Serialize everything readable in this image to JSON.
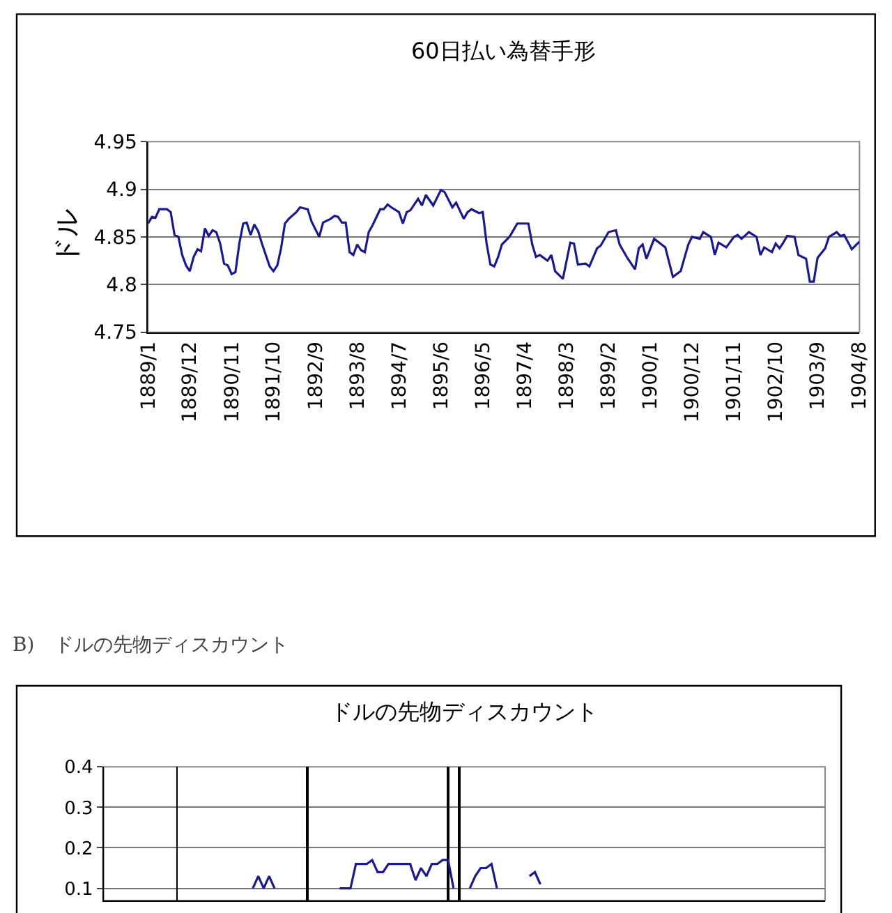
{
  "chart_data": [
    {
      "type": "line",
      "title": "60日払い為替手形",
      "ylabel": "ドル",
      "x": [
        "1889-01",
        "1889-02",
        "1889-03",
        "1889-04",
        "1889-06",
        "1889-07",
        "1889-08",
        "1889-09",
        "1889-10",
        "1889-11",
        "1889-12",
        "1890-01",
        "1890-02",
        "1890-03",
        "1890-04",
        "1890-05",
        "1890-06",
        "1890-07",
        "1890-08",
        "1890-09",
        "1890-10",
        "1890-11",
        "1890-12",
        "1891-01",
        "1891-02",
        "1891-03",
        "1891-04",
        "1891-05",
        "1891-06",
        "1891-07",
        "1891-09",
        "1891-10",
        "1891-11",
        "1891-12",
        "1892-01",
        "1892-02",
        "1892-04",
        "1892-05",
        "1892-07",
        "1892-08",
        "1892-10",
        "1892-11",
        "1893-01",
        "1893-02",
        "1893-03",
        "1893-04",
        "1893-05",
        "1893-06",
        "1893-07",
        "1893-08",
        "1893-09",
        "1893-10",
        "1893-11",
        "1893-12",
        "1894-02",
        "1894-03",
        "1894-04",
        "1894-05",
        "1894-07",
        "1894-08",
        "1894-09",
        "1894-10",
        "1894-12",
        "1895-01",
        "1895-02",
        "1895-04",
        "1895-06",
        "1895-07",
        "1895-09",
        "1895-10",
        "1895-12",
        "1896-01",
        "1896-02",
        "1896-04",
        "1896-05",
        "1896-06",
        "1896-07",
        "1896-08",
        "1896-09",
        "1896-10",
        "1896-12",
        "1897-01",
        "1897-02",
        "1897-05",
        "1897-06",
        "1897-07",
        "1897-08",
        "1897-10",
        "1897-11",
        "1897-12",
        "1898-02",
        "1898-04",
        "1898-05",
        "1898-06",
        "1898-08",
        "1898-09",
        "1898-11",
        "1898-12",
        "1899-02",
        "1899-04",
        "1899-05",
        "1899-07",
        "1899-09",
        "1899-10",
        "1899-11",
        "1899-12",
        "1900-02",
        "1900-04",
        "1900-05",
        "1900-07",
        "1900-09",
        "1900-11",
        "1900-12",
        "1901-02",
        "1901-03",
        "1901-05",
        "1901-06",
        "1901-07",
        "1901-09",
        "1901-11",
        "1901-12",
        "1902-01",
        "1902-03",
        "1902-05",
        "1902-06",
        "1902-07",
        "1902-09",
        "1902-10",
        "1902-11",
        "1902-12",
        "1903-01",
        "1903-03",
        "1903-04",
        "1903-06",
        "1903-07",
        "1903-08",
        "1903-09",
        "1903-11",
        "1903-12",
        "1904-02",
        "1904-03",
        "1904-04",
        "1904-06",
        "1904-08"
      ],
      "series": [
        {
          "color": "#1a1a8c",
          "values": [
            4.864,
            4.871,
            4.87,
            4.879,
            4.879,
            4.876,
            4.852,
            4.85,
            4.831,
            4.82,
            4.814,
            4.829,
            4.837,
            4.835,
            4.859,
            4.851,
            4.857,
            4.855,
            4.843,
            4.822,
            4.82,
            4.811,
            4.813,
            4.843,
            4.864,
            4.865,
            4.852,
            4.863,
            4.856,
            4.843,
            4.819,
            4.814,
            4.82,
            4.838,
            4.864,
            4.869,
            4.876,
            4.881,
            4.879,
            4.866,
            4.85,
            4.865,
            4.869,
            4.872,
            4.871,
            4.865,
            4.865,
            4.834,
            4.831,
            4.842,
            4.836,
            4.834,
            4.855,
            4.862,
            4.879,
            4.879,
            4.884,
            4.881,
            4.876,
            4.864,
            4.876,
            4.878,
            4.89,
            4.883,
            4.894,
            4.883,
            4.899,
            4.897,
            4.881,
            4.886,
            4.869,
            4.876,
            4.879,
            4.875,
            4.876,
            4.843,
            4.821,
            4.819,
            4.829,
            4.842,
            4.85,
            4.857,
            4.864,
            4.864,
            4.842,
            4.829,
            4.831,
            4.825,
            4.831,
            4.814,
            4.806,
            4.844,
            4.843,
            4.821,
            4.822,
            4.819,
            4.838,
            4.841,
            4.855,
            4.857,
            4.842,
            4.828,
            4.816,
            4.838,
            4.842,
            4.827,
            4.848,
            4.842,
            4.839,
            4.808,
            4.814,
            4.842,
            4.85,
            4.848,
            4.855,
            4.85,
            4.831,
            4.844,
            4.839,
            4.85,
            4.852,
            4.848,
            4.855,
            4.85,
            4.831,
            4.839,
            4.834,
            4.843,
            4.838,
            4.844,
            4.851,
            4.85,
            4.831,
            4.827,
            4.803,
            4.803,
            4.828,
            4.838,
            4.85,
            4.855,
            4.851,
            4.852,
            4.837,
            4.845
          ]
        }
      ],
      "xlim": [
        "1889-01",
        "1904-08"
      ],
      "xticks": [
        {
          "value": "1889-01",
          "label": "1889/1"
        },
        {
          "value": "1889-12",
          "label": "1889/12"
        },
        {
          "value": "1890-11",
          "label": "1890/11"
        },
        {
          "value": "1891-10",
          "label": "1891/10"
        },
        {
          "value": "1892-09",
          "label": "1892/9"
        },
        {
          "value": "1893-08",
          "label": "1893/8"
        },
        {
          "value": "1894-07",
          "label": "1894/7"
        },
        {
          "value": "1895-06",
          "label": "1895/6"
        },
        {
          "value": "1896-05",
          "label": "1896/5"
        },
        {
          "value": "1897-04",
          "label": "1897/4"
        },
        {
          "value": "1898-03",
          "label": "1898/3"
        },
        {
          "value": "1899-02",
          "label": "1899/2"
        },
        {
          "value": "1900-01",
          "label": "1900/1"
        },
        {
          "value": "1900-12",
          "label": "1900/12"
        },
        {
          "value": "1901-11",
          "label": "1901/11"
        },
        {
          "value": "1902-10",
          "label": "1902/10"
        },
        {
          "value": "1903-09",
          "label": "1903/9"
        },
        {
          "value": "1904-08",
          "label": "1904/8"
        }
      ],
      "ylim": [
        4.75,
        4.95
      ],
      "yticks": [
        4.75,
        4.8,
        4.85,
        4.9,
        4.95
      ],
      "grid": "y"
    },
    {
      "type": "line",
      "title": "ドルの先物ディスカウント",
      "annotations": [
        "B)　ドルの先物ディスカウント"
      ],
      "categories": [
        null,
        null,
        null,
        null,
        null,
        null,
        null,
        null,
        null,
        null,
        null,
        null,
        null,
        null,
        null,
        null,
        null,
        null,
        null,
        null,
        null,
        null,
        null,
        null,
        null,
        null,
        null,
        null,
        null,
        null,
        null,
        null,
        null,
        null,
        null,
        null,
        null,
        null,
        null,
        null,
        null,
        null,
        null,
        null,
        null,
        null,
        null,
        null,
        null,
        null,
        null,
        null,
        null,
        null,
        null,
        null,
        null,
        null,
        null,
        null,
        null,
        null,
        null,
        null,
        null,
        null,
        null,
        null,
        null,
        null,
        null,
        null,
        null,
        null,
        null,
        null,
        null,
        null,
        null,
        null,
        null,
        null,
        null,
        null,
        null,
        null,
        null,
        null,
        null,
        null,
        null,
        null,
        null,
        null,
        null,
        null,
        null,
        null,
        null,
        null,
        null,
        null,
        null,
        null,
        null,
        null,
        null,
        null,
        null,
        null,
        null,
        null,
        null,
        null,
        null,
        null,
        null,
        null,
        null,
        null,
        null,
        null,
        null,
        null,
        null,
        null,
        null,
        null,
        null,
        null,
        null,
        null,
        null
      ],
      "series": [
        {
          "type": "bar",
          "color": "#000000",
          "values": [
            null,
            null,
            null,
            null,
            null,
            null,
            null,
            null,
            null,
            null,
            null,
            null,
            null,
            0.4,
            null,
            null,
            null,
            null,
            null,
            null,
            null,
            null,
            null,
            null,
            null,
            null,
            null,
            null,
            null,
            null,
            null,
            null,
            null,
            null,
            null,
            null,
            null,
            0.4,
            null,
            null,
            null,
            null,
            null,
            null,
            null,
            null,
            null,
            null,
            null,
            null,
            null,
            null,
            null,
            null,
            null,
            null,
            null,
            null,
            null,
            null,
            null,
            null,
            null,
            0.4,
            null,
            0.4,
            null,
            null,
            null,
            null,
            null,
            null,
            null,
            null,
            null,
            null,
            null,
            null,
            null,
            null,
            null,
            null,
            null,
            null,
            null,
            null,
            null,
            null,
            null,
            null,
            null,
            null,
            null,
            null,
            null,
            null,
            null,
            null,
            null,
            null,
            null,
            null,
            null,
            null,
            null,
            null,
            null,
            null,
            null,
            null,
            null,
            null,
            null,
            null,
            null,
            null,
            null,
            null,
            null,
            null,
            null,
            null,
            null,
            null,
            null,
            null,
            null,
            null,
            null,
            null,
            null,
            null,
            null
          ]
        },
        {
          "type": "line",
          "color": "#1a1a8c",
          "values": [
            null,
            null,
            null,
            null,
            null,
            null,
            null,
            null,
            null,
            null,
            null,
            null,
            null,
            null,
            null,
            null,
            null,
            null,
            null,
            null,
            null,
            null,
            null,
            null,
            null,
            null,
            null,
            0.1,
            0.13,
            0.1,
            0.13,
            0.1,
            null,
            null,
            null,
            null,
            null,
            null,
            null,
            null,
            null,
            null,
            null,
            0.1,
            0.1,
            0.1,
            0.16,
            0.16,
            0.16,
            0.17,
            0.14,
            0.14,
            0.16,
            0.16,
            0.16,
            0.16,
            0.16,
            0.12,
            0.15,
            0.13,
            0.16,
            0.16,
            0.17,
            0.17,
            0.1,
            null,
            null,
            0.1,
            0.13,
            0.15,
            0.15,
            0.16,
            0.1,
            null,
            null,
            null,
            null,
            null,
            0.13,
            0.14,
            0.11,
            null,
            null,
            null,
            null,
            null,
            null,
            null,
            null,
            null,
            null,
            null,
            null,
            null,
            null,
            null,
            null,
            null,
            null,
            null,
            null,
            null,
            null,
            null,
            null,
            null,
            null,
            null,
            null,
            null,
            null,
            null,
            null,
            null,
            null,
            null,
            null,
            null,
            null,
            null,
            null,
            null,
            null,
            null,
            null,
            null,
            null,
            null,
            null,
            null,
            null,
            null,
            null
          ]
        }
      ],
      "ylim": [
        0.07,
        0.4
      ],
      "yticks": [
        0.1,
        0.2,
        0.3,
        0.4
      ],
      "grid": "y",
      "tick_labels": "y"
    }
  ]
}
